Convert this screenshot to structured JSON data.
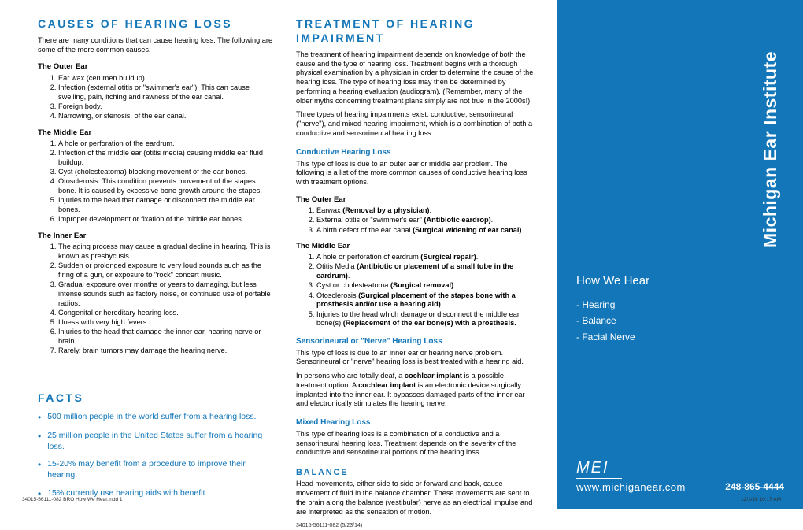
{
  "colors": {
    "brand_blue": "#1276b8",
    "white": "#ffffff",
    "text": "#000000"
  },
  "left": {
    "title": "CAUSES OF HEARING LOSS",
    "intro": "There are many conditions that can cause hearing loss.  The following are some of the more common causes.",
    "outer_ear": {
      "head": "The Outer Ear",
      "items": [
        "Ear wax (cerumen buildup).",
        "Infection (external otitis or \"swimmer's ear\"):  This can cause swelling, pain, itching and rawness of the ear canal.",
        "Foreign body.",
        "Narrowing, or stenosis, of the ear canal."
      ]
    },
    "middle_ear": {
      "head": "The Middle Ear",
      "items": [
        "A hole or perforation of the eardrum.",
        "Infection of the middle ear (otitis media) causing middle ear fluid buildup.",
        "Cyst (cholesteatoma) blocking movement of the ear bones.",
        "Otosclerosis: This condition prevents movement of the stapes bone.  It is caused by excessive bone growth around the stapes.",
        "Injuries to the head that damage or disconnect the middle ear bones.",
        "Improper development or fixation of the middle ear bones."
      ]
    },
    "inner_ear": {
      "head": "The Inner Ear",
      "items": [
        "The aging process may cause a gradual decline in hearing.  This is known as presbycusis.",
        "Sudden or prolonged exposure to very loud sounds such as the firing of a gun, or exposure to \"rock\" concert music.",
        "Gradual exposure over months or years to damaging, but less intense sounds such as factory noise, or continued use of portable radios.",
        "Congenital or hereditary hearing loss.",
        "Illness with very high fevers.",
        "Injuries to the head that damage the inner ear, hearing nerve or brain.",
        "Rarely, brain tumors may damage the hearing nerve."
      ]
    },
    "facts_title": "FACTS",
    "facts": [
      "500 million people in the world suffer from a hearing loss.",
      "25 million people in the United States suffer from a hearing loss.",
      "15-20% may benefit from a procedure to improve their hearing.",
      "15% currently use hearing aids with benefit."
    ]
  },
  "right": {
    "title": "TREATMENT OF HEARING IMPAIRMENT",
    "intro1": "The treatment of hearing impairment depends on knowledge of both the cause and the type of hearing loss.  Treatment begins with a thorough physical examination by a physician in order to determine the cause of the hearing loss.  The type of hearing loss may then be determined by performing a hearing evaluation (audiogram).  (Remember, many of the older myths concerning treatment plans simply are not true in the 2000s!)",
    "intro2": "Three types of hearing impairments exist: conductive, sensorineural (\"nerve\"), and mixed hearing impairment, which is a combination of both a conductive and sensorineural hearing loss.",
    "conductive_head": "Conductive Hearing Loss",
    "conductive_intro": "This type of loss is due to an outer ear or middle ear problem.  The following is a list of the more common causes of conductive hearing loss with treatment options.",
    "outer_head": "The Outer Ear",
    "middle_head": "The Middle Ear",
    "senso_head": "Sensorineural or \"Nerve\" Hearing Loss",
    "senso_p1": "This type of loss is due to an inner ear or hearing nerve problem.  Sensorineural or \"nerve\" hearing loss is best treated with a hearing aid.",
    "mixed_head": "Mixed Hearing Loss",
    "mixed_p": "This type of hearing loss is a combination of a conductive and a sensorineural hearing loss.  Treatment depends on the severity of the conductive and sensorineural portions of the hearing loss.",
    "balance_head": "BALANCE",
    "balance_p": "Head movements, either side to side or forward and back, cause movement of fluid in the balance chamber.  These movements are sent to the brain along the balance (vestibular) nerve as an electrical impulse and are interpreted as the sensation of motion.",
    "docnum": "34015-56111-082 (5/23/14)"
  },
  "sidebar": {
    "vtitle": "Michigan Ear Institute",
    "howwehear": "How We Hear",
    "items": [
      "Hearing",
      "Balance",
      "Facial Nerve"
    ],
    "logo": "MEI",
    "url": "www.michiganear.com",
    "phone": "248-865-4444"
  },
  "footer": {
    "left": "34015-56111-082 BRO How We Hear.indd   1",
    "right": "12/1/16   10:17 AM"
  }
}
